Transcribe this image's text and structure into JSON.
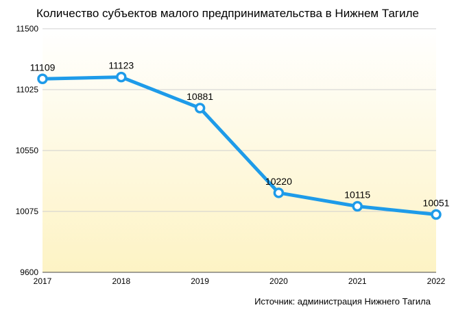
{
  "chart_data": {
    "type": "line",
    "title": "Количество субъектов малого предпринимательства в Нижнем Тагиле",
    "xlabel": "",
    "ylabel": "",
    "categories": [
      "2017",
      "2018",
      "2019",
      "2020",
      "2021",
      "2022"
    ],
    "series": [
      {
        "values": [
          11109,
          11123,
          10881,
          10220,
          10115,
          10051
        ],
        "color": "#1e9be9"
      }
    ],
    "data_labels": [
      "11109",
      "11123",
      "10881",
      "10220",
      "10115",
      "10051"
    ],
    "ylim": [
      9600,
      11500
    ],
    "yticks": [
      9600,
      10075,
      10550,
      11025,
      11500
    ],
    "grid": true,
    "plot_background": {
      "top_color": "#ffffff",
      "bottom_color": "#fdf3c4"
    },
    "source": "Источник: администрация Нижнего Тагила"
  }
}
